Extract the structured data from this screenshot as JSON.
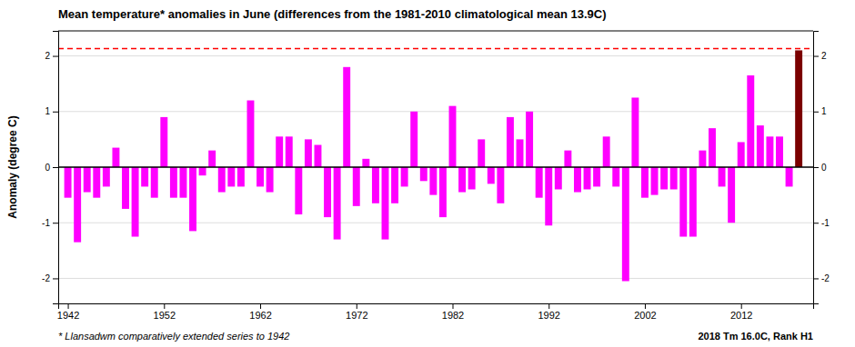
{
  "chart_data": {
    "type": "bar",
    "title": "Mean temperature* anomalies in June (differences from the 1981-2010 climatological mean 13.9C)",
    "y_label": "Anomaly (degree C)",
    "annotations": [
      "* Llansadwm comparatively extended series to 1942",
      "2018 Tm 16.0C, Rank H1"
    ],
    "x": [
      1942,
      1943,
      1944,
      1945,
      1946,
      1947,
      1948,
      1949,
      1950,
      1951,
      1952,
      1953,
      1954,
      1955,
      1956,
      1957,
      1958,
      1959,
      1960,
      1961,
      1962,
      1963,
      1964,
      1965,
      1966,
      1967,
      1968,
      1969,
      1970,
      1971,
      1972,
      1973,
      1974,
      1975,
      1976,
      1977,
      1978,
      1979,
      1980,
      1981,
      1982,
      1983,
      1984,
      1985,
      1986,
      1987,
      1988,
      1989,
      1990,
      1991,
      1992,
      1993,
      1994,
      1995,
      1996,
      1997,
      1998,
      1999,
      2000,
      2001,
      2002,
      2003,
      2004,
      2005,
      2006,
      2007,
      2008,
      2009,
      2010,
      2011,
      2012,
      2013,
      2014,
      2015,
      2016,
      2017,
      2018
    ],
    "values": [
      -0.55,
      -1.35,
      -0.45,
      -0.55,
      -0.35,
      0.35,
      -0.75,
      -1.25,
      -0.35,
      -0.55,
      0.9,
      -0.55,
      -0.55,
      -1.15,
      -0.15,
      0.3,
      -0.45,
      -0.35,
      -0.35,
      1.2,
      -0.35,
      -0.45,
      0.55,
      0.55,
      -0.85,
      0.5,
      0.4,
      -0.9,
      -1.3,
      1.8,
      -0.7,
      0.15,
      -0.65,
      -1.3,
      -0.65,
      -0.35,
      1.0,
      -0.25,
      -0.5,
      -0.9,
      1.1,
      -0.45,
      -0.4,
      0.5,
      -0.3,
      -0.65,
      0.9,
      0.5,
      1.0,
      -0.55,
      -1.05,
      -0.4,
      0.3,
      -0.45,
      -0.4,
      -0.35,
      0.55,
      -0.35,
      -2.05,
      1.25,
      -0.55,
      -0.5,
      -0.4,
      -0.4,
      -1.25,
      -1.25,
      0.3,
      0.7,
      -0.35,
      -1.0,
      0.45,
      1.65,
      0.75,
      0.55,
      0.55,
      -0.35,
      2.1
    ],
    "colors": [
      "#FF00FF",
      "#FF00FF",
      "#FF00FF",
      "#FF00FF",
      "#FF00FF",
      "#FF00FF",
      "#FF00FF",
      "#FF00FF",
      "#FF00FF",
      "#FF00FF",
      "#FF00FF",
      "#FF00FF",
      "#FF00FF",
      "#FF00FF",
      "#FF00FF",
      "#FF00FF",
      "#FF00FF",
      "#FF00FF",
      "#FF00FF",
      "#FF00FF",
      "#FF00FF",
      "#FF00FF",
      "#FF00FF",
      "#FF00FF",
      "#FF00FF",
      "#FF00FF",
      "#FF00FF",
      "#FF00FF",
      "#FF00FF",
      "#FF00FF",
      "#FF00FF",
      "#FF00FF",
      "#FF00FF",
      "#FF00FF",
      "#FF00FF",
      "#FF00FF",
      "#FF00FF",
      "#FF00FF",
      "#FF00FF",
      "#FF00FF",
      "#FF00FF",
      "#FF00FF",
      "#FF00FF",
      "#FF00FF",
      "#FF00FF",
      "#FF00FF",
      "#FF00FF",
      "#FF00FF",
      "#FF00FF",
      "#FF00FF",
      "#FF00FF",
      "#FF00FF",
      "#FF00FF",
      "#FF00FF",
      "#FF00FF",
      "#FF00FF",
      "#FF00FF",
      "#FF00FF",
      "#FF00FF",
      "#FF00FF",
      "#FF00FF",
      "#FF00FF",
      "#FF00FF",
      "#FF00FF",
      "#FF00FF",
      "#FF00FF",
      "#FF00FF",
      "#FF00FF",
      "#FF00FF",
      "#FF00FF",
      "#FF00FF",
      "#FF00FF",
      "#FF00FF",
      "#FF00FF",
      "#FF00FF",
      "#FF00FF",
      "#7B0000"
    ],
    "hline": 2.13,
    "xlim": [
      1941.0,
      2019.5
    ],
    "xticks": [
      1942,
      1952,
      1962,
      1972,
      1982,
      1992,
      2002,
      2012
    ],
    "ylim": [
      -2.45,
      2.45
    ],
    "yticks": [
      -2,
      -1,
      0,
      1,
      2
    ],
    "y2lim": [
      -2.45,
      2.45
    ],
    "y2ticks": [
      -2,
      -1,
      0,
      1,
      2
    ],
    "grid": true
  }
}
